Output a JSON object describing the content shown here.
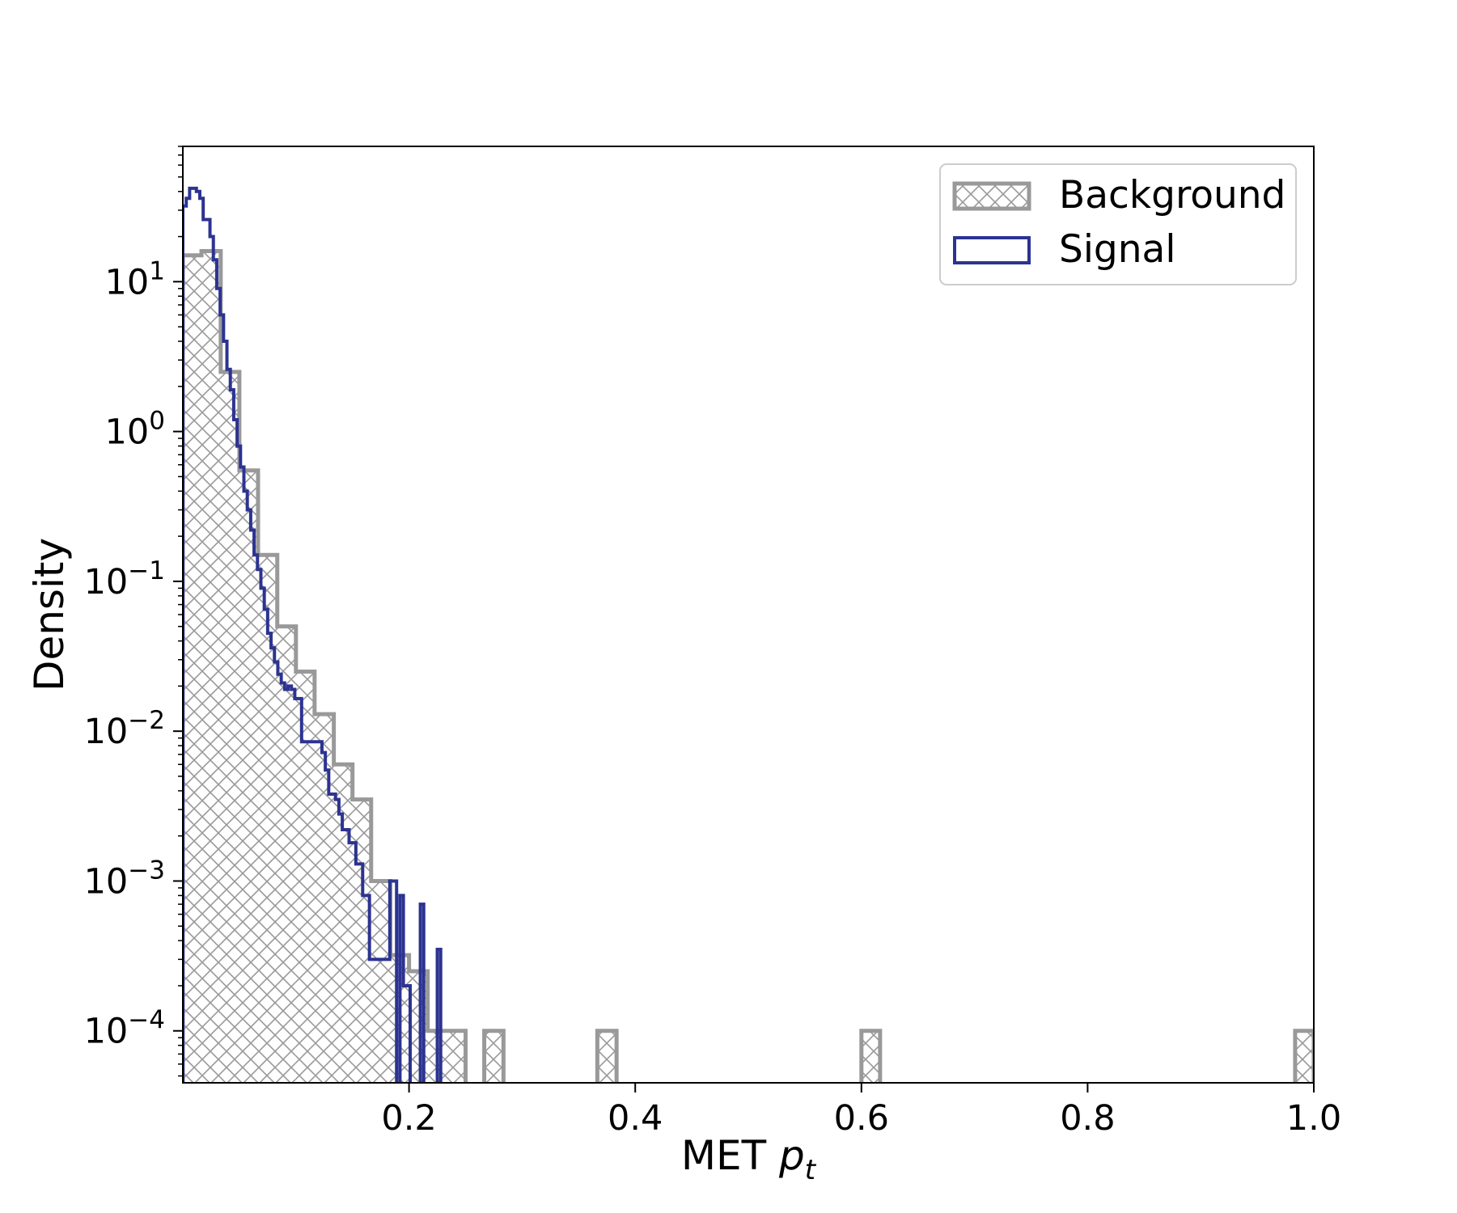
{
  "chart_data": {
    "type": "histogram",
    "xlabel": "MET",
    "xlabel_italic": "p",
    "xlabel_sub": "t",
    "ylabel": "Density",
    "xlim": [
      0.0,
      1.0
    ],
    "ylim": [
      4.5e-05,
      80
    ],
    "yscale": "log",
    "grid": false,
    "legend_position": "top-right",
    "x_ticks": [
      {
        "value": 0.2,
        "label": "0.2"
      },
      {
        "value": 0.4,
        "label": "0.4"
      },
      {
        "value": 0.6,
        "label": "0.6"
      },
      {
        "value": 0.8,
        "label": "0.8"
      },
      {
        "value": 1.0,
        "label": "1.0"
      }
    ],
    "y_ticks": [
      {
        "value": 10,
        "base": "10",
        "exp": "1"
      },
      {
        "value": 1,
        "base": "10",
        "exp": "0"
      },
      {
        "value": 0.1,
        "base": "10",
        "exp": "−1"
      },
      {
        "value": 0.01,
        "base": "10",
        "exp": "−2"
      },
      {
        "value": 0.001,
        "base": "10",
        "exp": "−3"
      },
      {
        "value": 0.0001,
        "base": "10",
        "exp": "−4"
      }
    ],
    "series": [
      {
        "name": "Background",
        "style": "hatched",
        "color": "#999999",
        "edges": [
          0.0,
          0.0165,
          0.0335,
          0.05,
          0.0665,
          0.0835,
          0.1,
          0.1165,
          0.1335,
          0.15,
          0.1665,
          0.1835,
          0.2,
          0.2165,
          0.2335,
          0.25,
          0.2665,
          0.2835,
          0.3665,
          0.3835,
          0.6,
          0.6165,
          0.9835,
          1.0
        ],
        "values": [
          15,
          16,
          2.5,
          0.55,
          0.15,
          0.05,
          0.025,
          0.013,
          0.006,
          0.0035,
          0.001,
          0.00032,
          0.00025,
          0.0001,
          0.0001,
          0,
          0.0001,
          0,
          0.0001,
          0,
          0.0001,
          0,
          0.0001
        ]
      },
      {
        "name": "Signal",
        "style": "step",
        "color": "#2c3391",
        "edges": [
          0.0,
          0.003,
          0.006,
          0.009,
          0.012,
          0.015,
          0.018,
          0.021,
          0.024,
          0.027,
          0.03,
          0.033,
          0.036,
          0.039,
          0.042,
          0.045,
          0.048,
          0.051,
          0.054,
          0.057,
          0.06,
          0.063,
          0.066,
          0.069,
          0.072,
          0.075,
          0.078,
          0.081,
          0.084,
          0.087,
          0.09,
          0.093,
          0.096,
          0.099,
          0.102,
          0.105,
          0.108,
          0.111,
          0.114,
          0.117,
          0.12,
          0.123,
          0.126,
          0.129,
          0.132,
          0.135,
          0.138,
          0.141,
          0.144,
          0.147,
          0.15,
          0.153,
          0.156,
          0.159,
          0.162,
          0.165,
          0.168,
          0.171,
          0.174,
          0.177,
          0.18,
          0.183,
          0.186,
          0.189,
          0.192,
          0.195,
          0.198,
          0.201,
          0.204,
          0.207,
          0.21,
          0.213,
          0.216,
          0.219,
          0.222,
          0.225,
          0.228,
          0.231
        ],
        "values": [
          32,
          36,
          42,
          42,
          40,
          36,
          26,
          26,
          20,
          14,
          9,
          6,
          4,
          2.6,
          1.9,
          1.2,
          0.8,
          0.58,
          0.4,
          0.3,
          0.22,
          0.15,
          0.12,
          0.09,
          0.065,
          0.045,
          0.036,
          0.029,
          0.024,
          0.021,
          0.019,
          0.02,
          0.019,
          0.0165,
          0.0165,
          0.0085,
          0.0085,
          0.0085,
          0.0085,
          0.0085,
          0.0085,
          0.0072,
          0.0055,
          0.0038,
          0.0038,
          0.0035,
          0.0028,
          0.0022,
          0.0022,
          0.0018,
          0.0018,
          0.0013,
          0.0013,
          0.0008,
          0.0008,
          0.0003,
          0.0003,
          0.0003,
          0.0003,
          0.0003,
          0.0003,
          0.001,
          0.001,
          0,
          0.0008,
          0.0002,
          0.0002,
          0,
          0,
          0,
          0.0007,
          0,
          0,
          0,
          0,
          0.00035,
          0,
          0
        ]
      }
    ]
  }
}
